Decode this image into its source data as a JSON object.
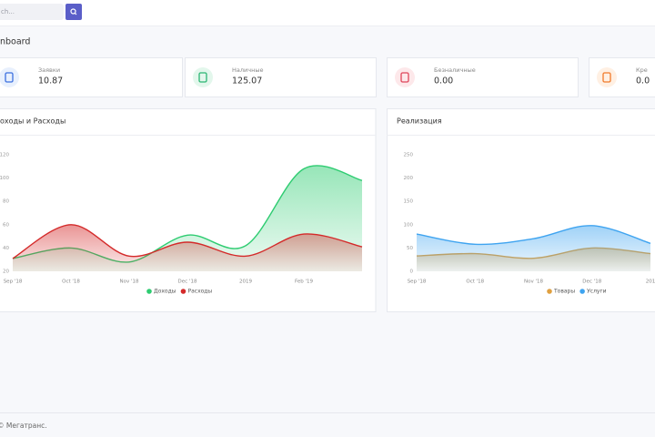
{
  "search": {
    "placeholder": "ch..."
  },
  "header": {
    "title": "nboard"
  },
  "stats": [
    {
      "label": "Заявки",
      "value": "10.87"
    },
    {
      "label": "Наличные",
      "value": "125.07"
    },
    {
      "label": "Безналичные",
      "value": "0.00"
    },
    {
      "label": "Кре",
      "value": "0.0"
    }
  ],
  "chart_data": [
    {
      "type": "area",
      "title": "оходы и Расходы",
      "categories": [
        "Sep '18",
        "Oct '18",
        "Nov '18",
        "Dec '18",
        "2019",
        "Feb '19",
        null
      ],
      "series": [
        {
          "name": "Доходы",
          "color": "#2ecc71",
          "values": [
            31,
            40,
            28,
            51,
            42,
            108,
            98
          ]
        },
        {
          "name": "Расходы",
          "color": "#d42a2a",
          "values": [
            31,
            60,
            33,
            45,
            33,
            52,
            41
          ]
        }
      ],
      "ylim": [
        20,
        120
      ],
      "yticks": [
        20,
        40,
        60,
        80,
        100,
        120
      ],
      "legend": "bottom"
    },
    {
      "type": "area",
      "title": "Реализация",
      "categories": [
        "Sep '18",
        "Oct '18",
        "Nov '18",
        "Dec '18",
        "201"
      ],
      "series": [
        {
          "name": "Товары",
          "color": "#e0a040",
          "values": [
            33,
            38,
            28,
            50,
            38
          ]
        },
        {
          "name": "Услуги",
          "color": "#3fa4f0",
          "values": [
            80,
            58,
            70,
            98,
            60
          ]
        }
      ],
      "ylim": [
        0,
        250
      ],
      "yticks": [
        0,
        50,
        100,
        150,
        200,
        250
      ],
      "legend": "bottom"
    }
  ],
  "footer": "© Мегатранс."
}
